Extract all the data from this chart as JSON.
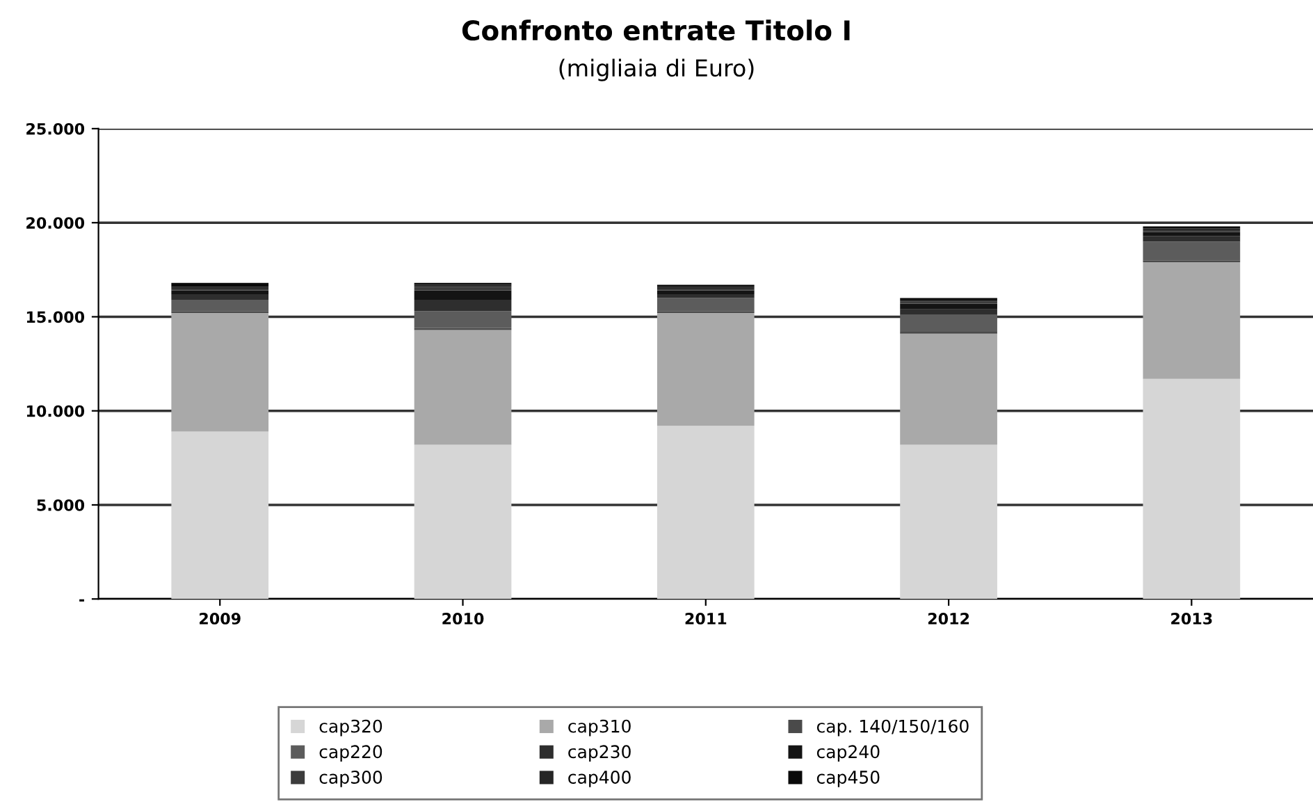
{
  "chart_data": {
    "type": "bar",
    "title": "Confronto entrate Titolo I",
    "subtitle": "(migliaia di Euro)",
    "categories": [
      "2009",
      "2010",
      "2011",
      "2012",
      "2013"
    ],
    "stacked": true,
    "series": [
      {
        "name": "cap320",
        "color": "#d6d6d6",
        "values": [
          8900,
          8200,
          9200,
          8200,
          11700
        ]
      },
      {
        "name": "cap310",
        "color": "#a9a9a9",
        "values": [
          6300,
          6100,
          6000,
          5900,
          6200
        ]
      },
      {
        "name": "cap. 140/150/160",
        "color": "#4a4a4a",
        "values": [
          100,
          100,
          100,
          100,
          100
        ]
      },
      {
        "name": "cap220",
        "color": "#5c5c5c",
        "values": [
          600,
          900,
          700,
          900,
          1000
        ]
      },
      {
        "name": "cap230",
        "color": "#2e2e2e",
        "values": [
          300,
          600,
          200,
          300,
          300
        ]
      },
      {
        "name": "cap240",
        "color": "#141414",
        "values": [
          200,
          500,
          200,
          300,
          200
        ]
      },
      {
        "name": "cap300",
        "color": "#3c3c3c",
        "values": [
          100,
          200,
          100,
          100,
          100
        ]
      },
      {
        "name": "cap400",
        "color": "#262626",
        "values": [
          100,
          100,
          100,
          100,
          100
        ]
      },
      {
        "name": "cap450",
        "color": "#0a0a0a",
        "values": [
          200,
          100,
          100,
          100,
          100
        ]
      }
    ],
    "ylim": [
      0,
      25000
    ],
    "yticks": [
      {
        "value": 0,
        "label": "-"
      },
      {
        "value": 5000,
        "label": "5.000"
      },
      {
        "value": 10000,
        "label": "10.000"
      },
      {
        "value": 15000,
        "label": "15.000"
      },
      {
        "value": 20000,
        "label": "20.000"
      },
      {
        "value": 25000,
        "label": "25.000"
      }
    ],
    "grid": "y",
    "legend": "bottom"
  }
}
